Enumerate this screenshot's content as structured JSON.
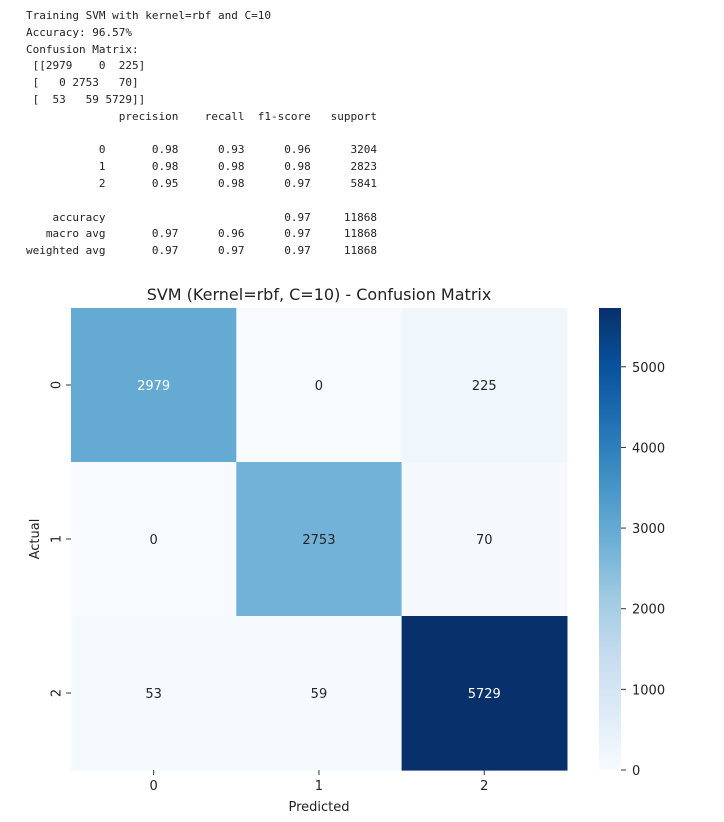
{
  "console_output": [
    "Training SVM with kernel=rbf and C=10",
    "Accuracy: 96.57%",
    "Confusion Matrix:",
    " [[2979    0  225]",
    " [   0 2753   70]",
    " [  53   59 5729]]",
    "              precision    recall  f1-score   support",
    "",
    "           0       0.98      0.93      0.96      3204",
    "           1       0.98      0.98      0.98      2823",
    "           2       0.95      0.98      0.97      5841",
    "",
    "    accuracy                           0.97     11868",
    "   macro avg       0.97      0.96      0.97     11868",
    "weighted avg       0.97      0.97      0.97     11868"
  ],
  "chart_data": {
    "type": "heatmap",
    "title": "SVM (Kernel=rbf, C=10) - Confusion Matrix",
    "xlabel": "Predicted",
    "ylabel": "Actual",
    "x_categories": [
      "0",
      "1",
      "2"
    ],
    "y_categories": [
      "0",
      "1",
      "2"
    ],
    "values": [
      [
        2979,
        0,
        225
      ],
      [
        0,
        2753,
        70
      ],
      [
        53,
        59,
        5729
      ]
    ],
    "annotations": true,
    "colormap": "Blues",
    "colorbar": {
      "min": 0,
      "max": 5729,
      "ticks": [
        0,
        1000,
        2000,
        3000,
        4000,
        5000
      ]
    },
    "legend": "colorbar-right"
  }
}
